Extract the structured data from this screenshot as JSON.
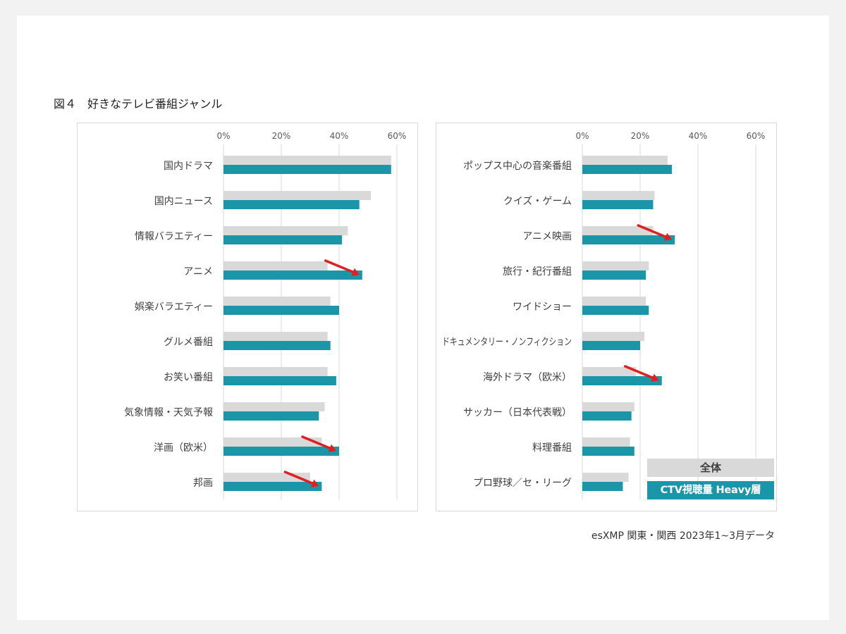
{
  "figure_title": "図４　好きなテレビ番組ジャンル",
  "source_note": "esXMP 関東・関西 2023年1~3月データ",
  "colors": {
    "overall": "#d9d9d9",
    "heavy": "#1b96a9",
    "arrow": "#e02020",
    "grid": "#d9d9d9"
  },
  "legend": {
    "overall": "全体",
    "heavy": "CTV視聴量 Heavy層"
  },
  "chart_data": [
    {
      "type": "bar",
      "orientation": "horizontal",
      "xlim": [
        0,
        60
      ],
      "ticks": [
        "0%",
        "20%",
        "40%",
        "60%"
      ],
      "tick_values": [
        0,
        20,
        40,
        60
      ],
      "grid": true,
      "categories": [
        "国内ドラマ",
        "国内ニュース",
        "情報バラエティー",
        "アニメ",
        "娯楽バラエティー",
        "グルメ番組",
        "お笑い番組",
        "気象情報・天気予報",
        "洋画（欧米）",
        "邦画"
      ],
      "series": [
        {
          "name": "全体",
          "values": [
            58,
            51,
            43,
            36,
            37,
            36,
            36,
            35,
            34,
            30
          ]
        },
        {
          "name": "CTV視聴量 Heavy層",
          "values": [
            58,
            47,
            41,
            48,
            40,
            37,
            39,
            33,
            40,
            34
          ]
        }
      ],
      "highlighted": [
        "アニメ",
        "洋画（欧米）",
        "邦画"
      ]
    },
    {
      "type": "bar",
      "orientation": "horizontal",
      "xlim": [
        0,
        60
      ],
      "ticks": [
        "0%",
        "20%",
        "40%",
        "60%"
      ],
      "tick_values": [
        0,
        20,
        40,
        60
      ],
      "grid": true,
      "categories": [
        "ポップス中心の音楽番組",
        "クイズ・ゲーム",
        "アニメ映画",
        "旅行・紀行番組",
        "ワイドショー",
        "ドキュメンタリー・ノンフィクション",
        "海外ドラマ（欧米）",
        "サッカー（日本代表戦）",
        "料理番組",
        "プロ野球／セ・リーグ"
      ],
      "series": [
        {
          "name": "全体",
          "values": [
            29.5,
            25,
            24.5,
            23,
            22,
            21.5,
            18.5,
            18,
            16.5,
            16
          ]
        },
        {
          "name": "CTV視聴量 Heavy層",
          "values": [
            31,
            24.5,
            32,
            22,
            23,
            20,
            27.5,
            17,
            18,
            14
          ]
        }
      ],
      "highlighted": [
        "アニメ映画",
        "海外ドラマ（欧米）"
      ]
    }
  ]
}
